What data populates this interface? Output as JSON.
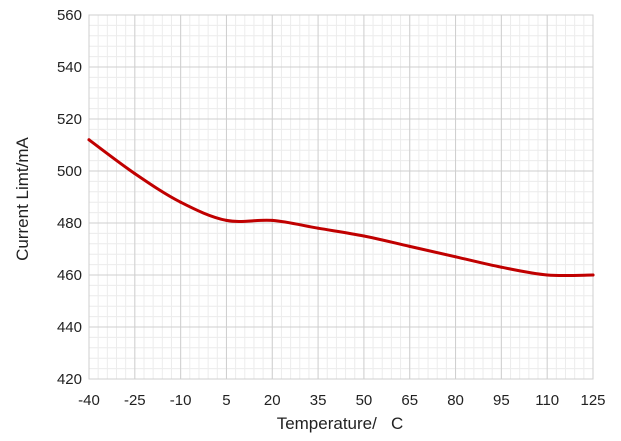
{
  "chart_data": {
    "type": "line",
    "title": "",
    "xlabel": "Temperature/   C",
    "ylabel": "Current Limt/mA",
    "xlim": [
      -40,
      125
    ],
    "ylim": [
      420,
      560
    ],
    "x_ticks": [
      "-40",
      "-25",
      "-10",
      "5",
      "20",
      "35",
      "50",
      "65",
      "80",
      "95",
      "110",
      "125"
    ],
    "y_ticks": [
      "420",
      "440",
      "460",
      "480",
      "500",
      "520",
      "540",
      "560"
    ],
    "grid": true,
    "legend": "none",
    "series": [
      {
        "color": "#c00000",
        "x": [
          -40,
          -25,
          -10,
          5,
          20,
          35,
          50,
          65,
          80,
          95,
          110,
          125
        ],
        "y": [
          512,
          499,
          488,
          481,
          481,
          478,
          475,
          471,
          467,
          463,
          460,
          460
        ]
      }
    ]
  }
}
